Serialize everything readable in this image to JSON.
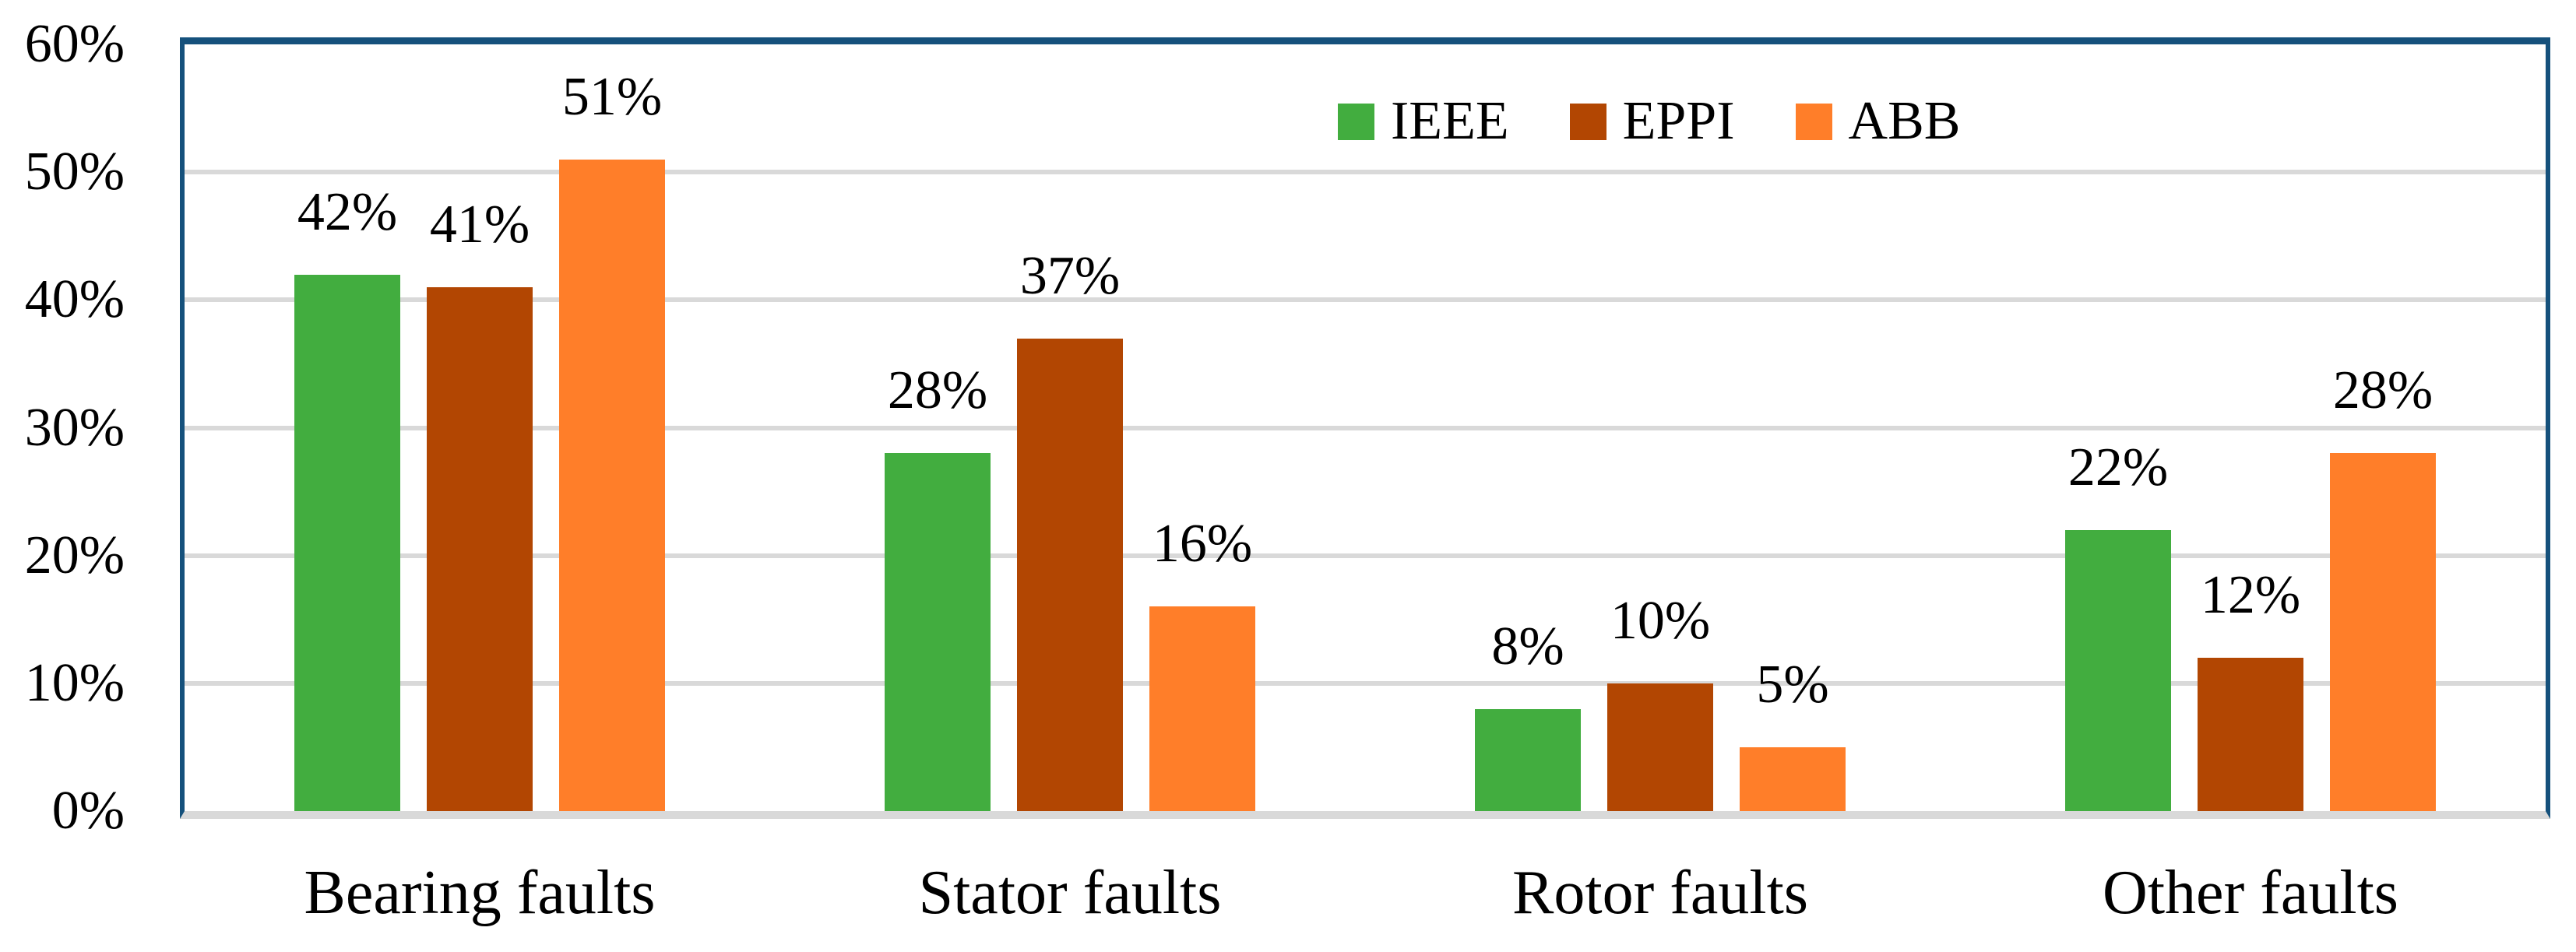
{
  "figure": {
    "kind": "grouped-column-chart"
  },
  "colors": {
    "frame_border": "#15517C",
    "gridline": "#D9D9D9",
    "baseline_axis": "#D9D9D9",
    "text": "#000000"
  },
  "chart_data": {
    "type": "bar",
    "title": "",
    "xlabel": "",
    "ylabel": "",
    "categories": [
      "Bearing faults",
      "Stator faults",
      "Rotor faults",
      "Other faults"
    ],
    "series": [
      {
        "name": "IEEE",
        "color": "#42AD3F",
        "values": [
          42,
          28,
          8,
          22
        ]
      },
      {
        "name": "EPPI",
        "color": "#B24602",
        "values": [
          41,
          37,
          10,
          12
        ]
      },
      {
        "name": "ABB",
        "color": "#FF7E29",
        "values": [
          51,
          16,
          5,
          28
        ]
      }
    ],
    "data_labels": {
      "format": "{v}%",
      "labels": [
        [
          "42%",
          "28%",
          "8%",
          "22%"
        ],
        [
          "41%",
          "37%",
          "10%",
          "12%"
        ],
        [
          "51%",
          "16%",
          "5%",
          "28%"
        ]
      ]
    },
    "y_axis": {
      "ticks": [
        "0%",
        "10%",
        "20%",
        "30%",
        "40%",
        "50%",
        "60%"
      ],
      "tick_values": [
        0,
        10,
        20,
        30,
        40,
        50,
        60
      ],
      "ylim": [
        0,
        60
      ]
    },
    "grid": true,
    "legend": {
      "position": "top-center-inside",
      "entries": [
        "IEEE",
        "EPPI",
        "ABB"
      ]
    }
  }
}
